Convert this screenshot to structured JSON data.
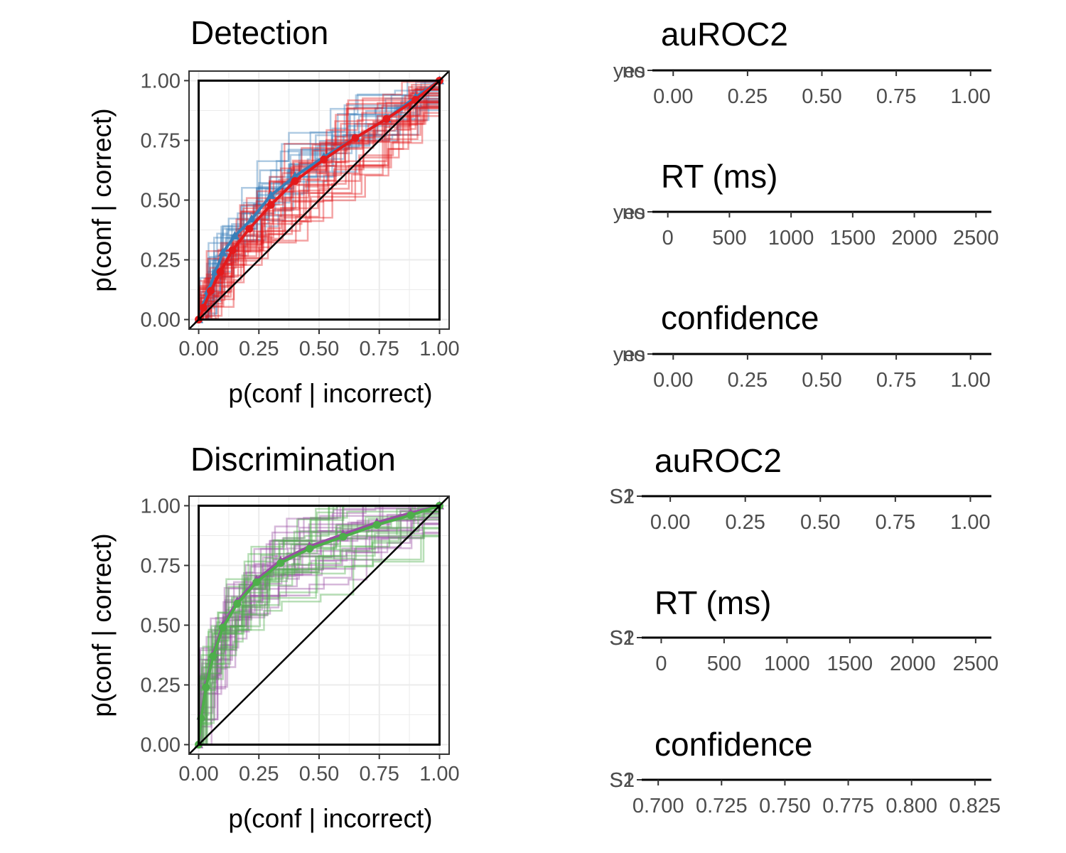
{
  "colors": {
    "yes": "#377EB8",
    "no": "#E41A1C",
    "S1": "#984EA3",
    "S2": "#4DAF4A"
  },
  "chart_data": [
    {
      "id": "detection",
      "type": "line",
      "title": "Detection",
      "xlabel": "p(conf | incorrect)",
      "ylabel": "p(conf | correct)",
      "xlim": [
        -0.04,
        1.04
      ],
      "ylim": [
        -0.04,
        1.04
      ],
      "x_ticks": [
        "0.00",
        "0.25",
        "0.50",
        "0.75",
        "1.00"
      ],
      "y_ticks": [
        "0.00",
        "0.25",
        "0.50",
        "0.75",
        "1.00"
      ],
      "grid": true,
      "reference_box": [
        0,
        0,
        1,
        1
      ],
      "diagonal": true,
      "series": [
        {
          "color_key": "yes",
          "mean": {
            "x": [
              0,
              0.02,
              0.04,
              0.07,
              0.1,
              0.15,
              0.22,
              0.3,
              0.4,
              0.52,
              0.65,
              0.78,
              0.9,
              1.0
            ],
            "y": [
              0,
              0.06,
              0.12,
              0.2,
              0.28,
              0.35,
              0.42,
              0.52,
              0.6,
              0.68,
              0.76,
              0.84,
              0.93,
              1.0
            ]
          },
          "n_subjects": 18,
          "marker": "triangle"
        },
        {
          "color_key": "no",
          "mean": {
            "x": [
              0,
              0.02,
              0.05,
              0.09,
              0.14,
              0.21,
              0.3,
              0.4,
              0.52,
              0.65,
              0.78,
              0.9,
              1.0
            ],
            "y": [
              0,
              0.05,
              0.12,
              0.2,
              0.29,
              0.38,
              0.48,
              0.58,
              0.67,
              0.76,
              0.84,
              0.92,
              1.0
            ]
          },
          "n_subjects": 28,
          "marker": "circle"
        }
      ]
    },
    {
      "id": "discrimination",
      "type": "line",
      "title": "Discrimination",
      "xlabel": "p(conf | incorrect)",
      "ylabel": "p(conf | correct)",
      "xlim": [
        -0.04,
        1.04
      ],
      "ylim": [
        -0.04,
        1.04
      ],
      "x_ticks": [
        "0.00",
        "0.25",
        "0.50",
        "0.75",
        "1.00"
      ],
      "y_ticks": [
        "0.00",
        "0.25",
        "0.50",
        "0.75",
        "1.00"
      ],
      "grid": true,
      "reference_box": [
        0,
        0,
        1,
        1
      ],
      "diagonal": true,
      "series": [
        {
          "color_key": "S1",
          "mean": {
            "x": [
              0,
              0.01,
              0.03,
              0.06,
              0.1,
              0.16,
              0.24,
              0.34,
              0.46,
              0.6,
              0.74,
              0.88,
              1.0
            ],
            "y": [
              0,
              0.12,
              0.25,
              0.38,
              0.5,
              0.6,
              0.69,
              0.77,
              0.83,
              0.88,
              0.93,
              0.97,
              1.0
            ]
          },
          "n_subjects": 24,
          "marker": "triangle"
        },
        {
          "color_key": "S2",
          "mean": {
            "x": [
              0,
              0.01,
              0.03,
              0.06,
              0.1,
              0.16,
              0.24,
              0.34,
              0.46,
              0.6,
              0.74,
              0.88,
              1.0
            ],
            "y": [
              0,
              0.11,
              0.24,
              0.37,
              0.49,
              0.59,
              0.68,
              0.76,
              0.82,
              0.87,
              0.92,
              0.96,
              1.0
            ]
          },
          "n_subjects": 20,
          "marker": "circle"
        }
      ]
    },
    {
      "id": "det-auroc2",
      "type": "scatter",
      "title": "auROC2",
      "categories": [
        "no",
        "yes"
      ],
      "x_ticks": [
        "0.00",
        "0.25",
        "0.50",
        "0.75",
        "1.00"
      ],
      "xlim": [
        -0.07,
        1.07
      ]
    },
    {
      "id": "det-rt",
      "type": "scatter",
      "title": "RT (ms)",
      "categories": [
        "no",
        "yes"
      ],
      "x_ticks": [
        "0",
        "500",
        "1000",
        "1500",
        "2000",
        "2500"
      ],
      "xlim": [
        -125,
        2625
      ]
    },
    {
      "id": "det-confidence",
      "type": "scatter",
      "title": "confidence",
      "categories": [
        "no",
        "yes"
      ],
      "x_ticks": [
        "0.00",
        "0.25",
        "0.50",
        "0.75",
        "1.00"
      ],
      "xlim": [
        -0.07,
        1.07
      ]
    },
    {
      "id": "dis-auroc2",
      "type": "scatter",
      "title": "auROC2",
      "categories": [
        "S1",
        "S2"
      ],
      "x_ticks": [
        "0.00",
        "0.25",
        "0.50",
        "0.75",
        "1.00"
      ],
      "xlim": [
        -0.095,
        1.07
      ]
    },
    {
      "id": "dis-rt",
      "type": "scatter",
      "title": "RT (ms)",
      "categories": [
        "S1",
        "S2"
      ],
      "x_ticks": [
        "0",
        "500",
        "1000",
        "1500",
        "2000",
        "2500"
      ],
      "xlim": [
        -155,
        2625
      ]
    },
    {
      "id": "dis-confidence",
      "type": "scatter",
      "title": "confidence",
      "categories": [
        "S1",
        "S2"
      ],
      "x_ticks": [
        "0.700",
        "0.725",
        "0.750",
        "0.775",
        "0.800",
        "0.825"
      ],
      "xlim": [
        0.6935,
        0.8315
      ]
    }
  ]
}
